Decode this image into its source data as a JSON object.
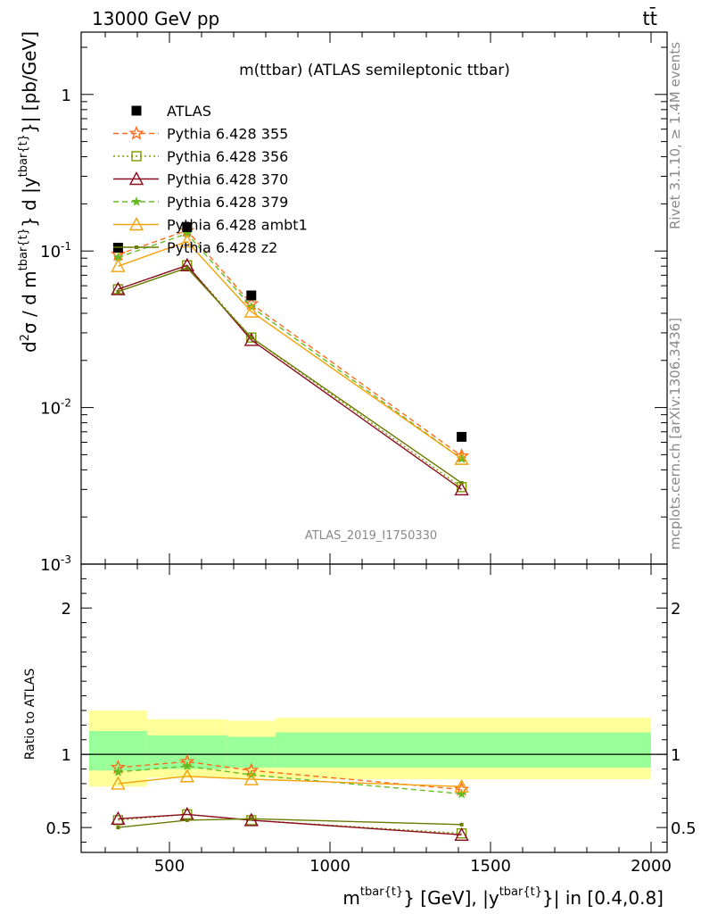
{
  "header": {
    "left": "13000 GeV pp",
    "right": "tt̄"
  },
  "side_labels": {
    "rivet": "Rivet 3.1.10, ≥ 1.4M events",
    "mcplots": "mcplots.cern.ch [arXiv:1306.3436]"
  },
  "chart_data": {
    "type": "scatter",
    "title": "m(ttbar) (ATLAS semileptonic ttbar)",
    "watermark": "ATLAS_2019_I1750330",
    "ylabel_main": "d²σ / d m^{tbar{t}} d |y^{tbar{t}}| [pb/GeV]",
    "ylabel_ratio": "Ratio to ATLAS",
    "xlabel": "m^{tbar{t}} [GeV], |y^{tbar{t}}| in [0.4,0.8]",
    "xlim": [
      225,
      2050
    ],
    "ylim_main": [
      0.001,
      2.5
    ],
    "yscale_main": "log",
    "ylim_ratio": [
      0.33,
      2.3
    ],
    "x_ticks": [
      "500",
      "1000",
      "1500",
      "2000"
    ],
    "y_ticks_main": [
      "1",
      "10^-1",
      "10^-2",
      "10^-3"
    ],
    "y_ticks_ratio": [
      "0.5",
      "1",
      "2"
    ],
    "legend_position": "top-left",
    "x": [
      340,
      555,
      755,
      1410
    ],
    "bins": [
      [
        250,
        430
      ],
      [
        430,
        680
      ],
      [
        680,
        830
      ],
      [
        830,
        2000
      ]
    ],
    "band_inner": [
      [
        0.89,
        1.16
      ],
      [
        0.9,
        1.13
      ],
      [
        0.91,
        1.12
      ],
      [
        0.91,
        1.15
      ]
    ],
    "band_outer": [
      [
        0.78,
        1.3
      ],
      [
        0.84,
        1.24
      ],
      [
        0.84,
        1.23
      ],
      [
        0.83,
        1.25
      ]
    ],
    "data": {
      "name": "ATLAS",
      "values": [
        0.105,
        0.142,
        0.052,
        0.0065
      ]
    },
    "series": [
      {
        "name": "Pythia 6.428 355",
        "color": "#ff6a1a",
        "marker": "star",
        "dash": "6,4",
        "values": [
          0.095,
          0.135,
          0.046,
          0.0049
        ],
        "ratio": [
          0.91,
          0.95,
          0.89,
          0.76
        ]
      },
      {
        "name": "Pythia 6.428 356",
        "color": "#7a9a00",
        "marker": "square",
        "dash": "2,3",
        "values": [
          0.057,
          0.081,
          0.028,
          0.0031
        ],
        "ratio": [
          0.55,
          0.59,
          0.55,
          0.46
        ]
      },
      {
        "name": "Pythia 6.428 370",
        "color": "#8b0a1e",
        "marker": "triangle",
        "dash": "",
        "values": [
          0.057,
          0.081,
          0.027,
          0.003
        ],
        "ratio": [
          0.56,
          0.59,
          0.55,
          0.45
        ]
      },
      {
        "name": "Pythia 6.428 379",
        "color": "#66bb22",
        "marker": "smallstar",
        "dash": "6,4",
        "values": [
          0.091,
          0.129,
          0.044,
          0.0047
        ],
        "ratio": [
          0.88,
          0.92,
          0.86,
          0.73
        ]
      },
      {
        "name": "Pythia 6.428 ambt1",
        "color": "#f5a10c",
        "marker": "triangle",
        "dash": "",
        "values": [
          0.08,
          0.115,
          0.041,
          0.0047
        ],
        "ratio": [
          0.8,
          0.85,
          0.83,
          0.78
        ]
      },
      {
        "name": "Pythia 6.428 z2",
        "color": "#6b7a00",
        "marker": "dot",
        "dash": "",
        "values": [
          0.055,
          0.078,
          0.028,
          0.0033
        ],
        "ratio": [
          0.5,
          0.55,
          0.56,
          0.52
        ]
      }
    ]
  }
}
